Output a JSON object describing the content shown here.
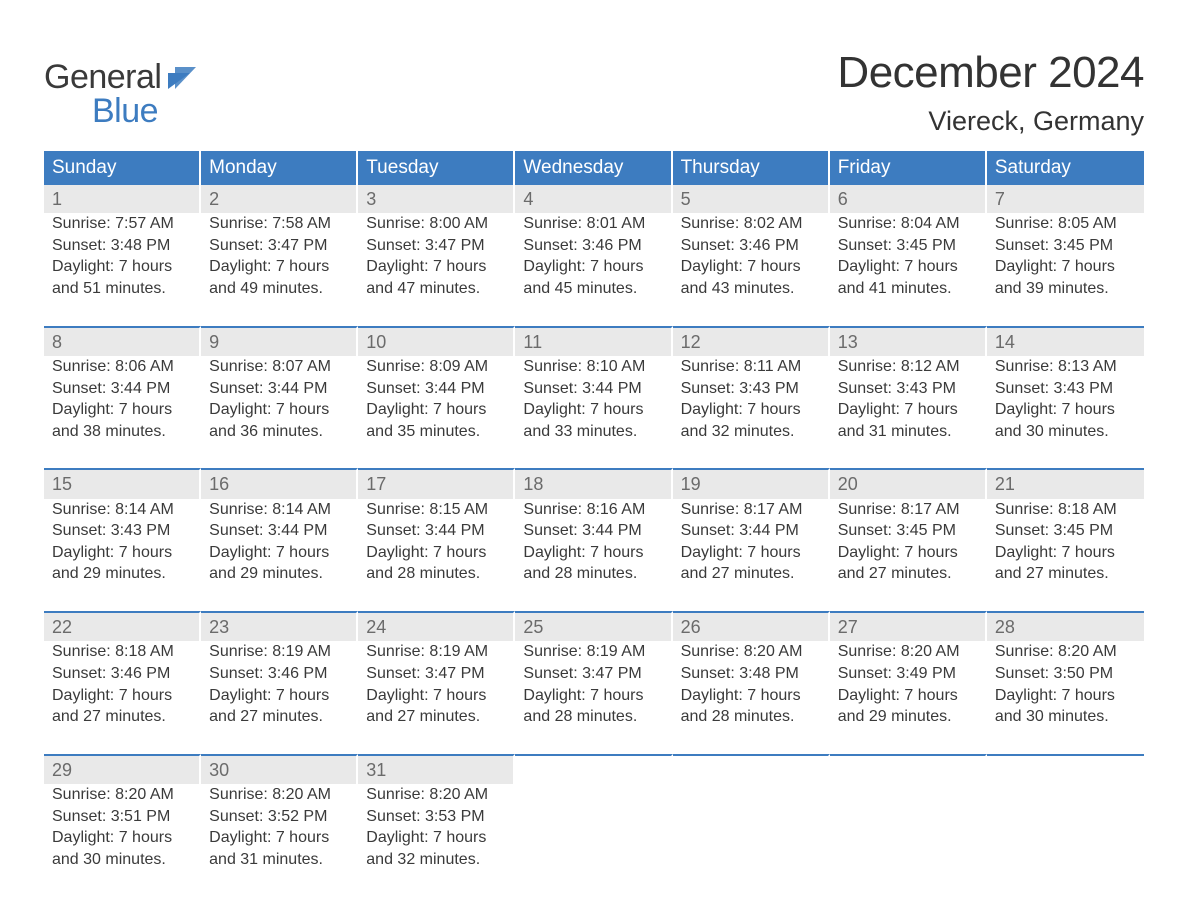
{
  "brand": {
    "word1": "General",
    "word2": "Blue",
    "text_color_1": "#3a3a3a",
    "text_color_2": "#3d7cc0",
    "flag_color": "#3d7cc0"
  },
  "header": {
    "title": "December 2024",
    "location": "Viereck, Germany",
    "title_fontsize": 44,
    "location_fontsize": 27,
    "title_color": "#333333"
  },
  "calendar": {
    "type": "calendar-table",
    "column_headers": [
      "Sunday",
      "Monday",
      "Tuesday",
      "Wednesday",
      "Thursday",
      "Friday",
      "Saturday"
    ],
    "header_bg": "#3d7cc0",
    "header_text_color": "#ffffff",
    "header_fontsize": 19,
    "daynum_bg": "#e9e9e9",
    "daynum_color": "#6b6b6b",
    "daynum_border_top": "#3d7cc0",
    "cell_text_color": "#3a3a3a",
    "cell_fontsize": 16,
    "background_color": "#ffffff",
    "weeks": [
      [
        {
          "num": "1",
          "sunrise": "Sunrise: 7:57 AM",
          "sunset": "Sunset: 3:48 PM",
          "day1": "Daylight: 7 hours",
          "day2": "and 51 minutes."
        },
        {
          "num": "2",
          "sunrise": "Sunrise: 7:58 AM",
          "sunset": "Sunset: 3:47 PM",
          "day1": "Daylight: 7 hours",
          "day2": "and 49 minutes."
        },
        {
          "num": "3",
          "sunrise": "Sunrise: 8:00 AM",
          "sunset": "Sunset: 3:47 PM",
          "day1": "Daylight: 7 hours",
          "day2": "and 47 minutes."
        },
        {
          "num": "4",
          "sunrise": "Sunrise: 8:01 AM",
          "sunset": "Sunset: 3:46 PM",
          "day1": "Daylight: 7 hours",
          "day2": "and 45 minutes."
        },
        {
          "num": "5",
          "sunrise": "Sunrise: 8:02 AM",
          "sunset": "Sunset: 3:46 PM",
          "day1": "Daylight: 7 hours",
          "day2": "and 43 minutes."
        },
        {
          "num": "6",
          "sunrise": "Sunrise: 8:04 AM",
          "sunset": "Sunset: 3:45 PM",
          "day1": "Daylight: 7 hours",
          "day2": "and 41 minutes."
        },
        {
          "num": "7",
          "sunrise": "Sunrise: 8:05 AM",
          "sunset": "Sunset: 3:45 PM",
          "day1": "Daylight: 7 hours",
          "day2": "and 39 minutes."
        }
      ],
      [
        {
          "num": "8",
          "sunrise": "Sunrise: 8:06 AM",
          "sunset": "Sunset: 3:44 PM",
          "day1": "Daylight: 7 hours",
          "day2": "and 38 minutes."
        },
        {
          "num": "9",
          "sunrise": "Sunrise: 8:07 AM",
          "sunset": "Sunset: 3:44 PM",
          "day1": "Daylight: 7 hours",
          "day2": "and 36 minutes."
        },
        {
          "num": "10",
          "sunrise": "Sunrise: 8:09 AM",
          "sunset": "Sunset: 3:44 PM",
          "day1": "Daylight: 7 hours",
          "day2": "and 35 minutes."
        },
        {
          "num": "11",
          "sunrise": "Sunrise: 8:10 AM",
          "sunset": "Sunset: 3:44 PM",
          "day1": "Daylight: 7 hours",
          "day2": "and 33 minutes."
        },
        {
          "num": "12",
          "sunrise": "Sunrise: 8:11 AM",
          "sunset": "Sunset: 3:43 PM",
          "day1": "Daylight: 7 hours",
          "day2": "and 32 minutes."
        },
        {
          "num": "13",
          "sunrise": "Sunrise: 8:12 AM",
          "sunset": "Sunset: 3:43 PM",
          "day1": "Daylight: 7 hours",
          "day2": "and 31 minutes."
        },
        {
          "num": "14",
          "sunrise": "Sunrise: 8:13 AM",
          "sunset": "Sunset: 3:43 PM",
          "day1": "Daylight: 7 hours",
          "day2": "and 30 minutes."
        }
      ],
      [
        {
          "num": "15",
          "sunrise": "Sunrise: 8:14 AM",
          "sunset": "Sunset: 3:43 PM",
          "day1": "Daylight: 7 hours",
          "day2": "and 29 minutes."
        },
        {
          "num": "16",
          "sunrise": "Sunrise: 8:14 AM",
          "sunset": "Sunset: 3:44 PM",
          "day1": "Daylight: 7 hours",
          "day2": "and 29 minutes."
        },
        {
          "num": "17",
          "sunrise": "Sunrise: 8:15 AM",
          "sunset": "Sunset: 3:44 PM",
          "day1": "Daylight: 7 hours",
          "day2": "and 28 minutes."
        },
        {
          "num": "18",
          "sunrise": "Sunrise: 8:16 AM",
          "sunset": "Sunset: 3:44 PM",
          "day1": "Daylight: 7 hours",
          "day2": "and 28 minutes."
        },
        {
          "num": "19",
          "sunrise": "Sunrise: 8:17 AM",
          "sunset": "Sunset: 3:44 PM",
          "day1": "Daylight: 7 hours",
          "day2": "and 27 minutes."
        },
        {
          "num": "20",
          "sunrise": "Sunrise: 8:17 AM",
          "sunset": "Sunset: 3:45 PM",
          "day1": "Daylight: 7 hours",
          "day2": "and 27 minutes."
        },
        {
          "num": "21",
          "sunrise": "Sunrise: 8:18 AM",
          "sunset": "Sunset: 3:45 PM",
          "day1": "Daylight: 7 hours",
          "day2": "and 27 minutes."
        }
      ],
      [
        {
          "num": "22",
          "sunrise": "Sunrise: 8:18 AM",
          "sunset": "Sunset: 3:46 PM",
          "day1": "Daylight: 7 hours",
          "day2": "and 27 minutes."
        },
        {
          "num": "23",
          "sunrise": "Sunrise: 8:19 AM",
          "sunset": "Sunset: 3:46 PM",
          "day1": "Daylight: 7 hours",
          "day2": "and 27 minutes."
        },
        {
          "num": "24",
          "sunrise": "Sunrise: 8:19 AM",
          "sunset": "Sunset: 3:47 PM",
          "day1": "Daylight: 7 hours",
          "day2": "and 27 minutes."
        },
        {
          "num": "25",
          "sunrise": "Sunrise: 8:19 AM",
          "sunset": "Sunset: 3:47 PM",
          "day1": "Daylight: 7 hours",
          "day2": "and 28 minutes."
        },
        {
          "num": "26",
          "sunrise": "Sunrise: 8:20 AM",
          "sunset": "Sunset: 3:48 PM",
          "day1": "Daylight: 7 hours",
          "day2": "and 28 minutes."
        },
        {
          "num": "27",
          "sunrise": "Sunrise: 8:20 AM",
          "sunset": "Sunset: 3:49 PM",
          "day1": "Daylight: 7 hours",
          "day2": "and 29 minutes."
        },
        {
          "num": "28",
          "sunrise": "Sunrise: 8:20 AM",
          "sunset": "Sunset: 3:50 PM",
          "day1": "Daylight: 7 hours",
          "day2": "and 30 minutes."
        }
      ],
      [
        {
          "num": "29",
          "sunrise": "Sunrise: 8:20 AM",
          "sunset": "Sunset: 3:51 PM",
          "day1": "Daylight: 7 hours",
          "day2": "and 30 minutes."
        },
        {
          "num": "30",
          "sunrise": "Sunrise: 8:20 AM",
          "sunset": "Sunset: 3:52 PM",
          "day1": "Daylight: 7 hours",
          "day2": "and 31 minutes."
        },
        {
          "num": "31",
          "sunrise": "Sunrise: 8:20 AM",
          "sunset": "Sunset: 3:53 PM",
          "day1": "Daylight: 7 hours",
          "day2": "and 32 minutes."
        },
        null,
        null,
        null,
        null
      ]
    ]
  }
}
